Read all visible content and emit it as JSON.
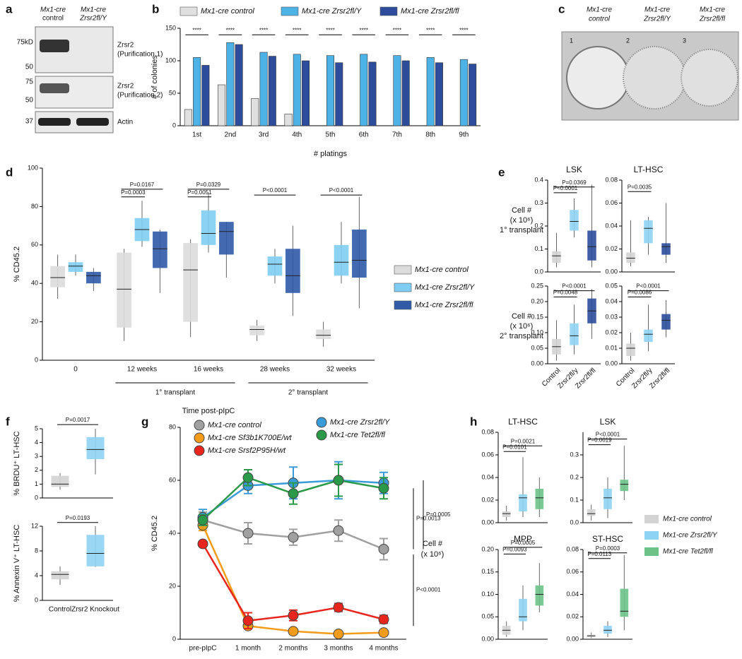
{
  "blot": {
    "letter": "a",
    "lanes": [
      [
        "Mx1-cre",
        "control"
      ],
      [
        "Mx1-cre",
        "Zrsr2fl/Y"
      ]
    ],
    "markers": [
      "75kD",
      "50",
      "75",
      "50",
      "37"
    ],
    "bands": [
      [
        "Zrsr2",
        "(Purification 1)"
      ],
      [
        "Zrsr2",
        "(Purification 2)"
      ],
      [
        "Actin"
      ]
    ]
  },
  "plate": {
    "letter": "c",
    "labels": [
      [
        "Mx1-cre",
        "control"
      ],
      [
        "Mx1-cre",
        "Zrsr2fl/Y"
      ],
      [
        "Mx1-cre",
        "Zrsr2fl/fl"
      ]
    ],
    "wells": [
      "1",
      "2",
      "3"
    ]
  },
  "e_row_labels": [
    [
      "Cell #",
      "(x 10⁶)",
      "1° transplant"
    ],
    [
      "Cell #",
      "(x 10⁶)",
      "2° transplant"
    ]
  ],
  "h_side_label": [
    "Cell #",
    "(x 10⁶)"
  ],
  "h_legend": [
    {
      "name": "Mx1-cre control",
      "color": "#d3d3d3"
    },
    {
      "name": "Mx1-cre Zrsr2fl/Y",
      "color": "#8fd3f4"
    },
    {
      "name": "Mx1-cre Tet2fl/fl",
      "color": "#6cc287"
    }
  ],
  "chart_data": [
    {
      "type": "bar",
      "panel": "b",
      "ylabel": "# of colonies",
      "xlabel": "# platings",
      "legend": "top",
      "categories": [
        "1st",
        "2nd",
        "3rd",
        "4th",
        "5th",
        "6th",
        "7th",
        "8th",
        "9th"
      ],
      "series": [
        {
          "name": "Mx1-cre control",
          "color": "#e0e0e0",
          "values": [
            25,
            63,
            42,
            18,
            0,
            0,
            0,
            0,
            0
          ]
        },
        {
          "name": "Mx1-cre Zrsr2fl/Y",
          "color": "#4db3e6",
          "values": [
            105,
            128,
            113,
            110,
            108,
            110,
            108,
            105,
            102
          ]
        },
        {
          "name": "Mx1-cre Zrsr2fl/fl",
          "color": "#2e4c9c",
          "values": [
            93,
            125,
            107,
            100,
            97,
            98,
            100,
            97,
            95
          ]
        }
      ],
      "ylim": [
        0,
        150
      ],
      "yticks": [
        0,
        50,
        100,
        150
      ],
      "annotations": [
        "****",
        "****",
        "****",
        "****",
        "****",
        "****",
        "****",
        "****",
        "****"
      ]
    },
    {
      "type": "box",
      "panel": "d",
      "ylabel": "% CD45.2",
      "xlabel": "Time post-pIpC",
      "legend": "right",
      "categories": [
        "0",
        "12 weeks",
        "16 weeks",
        "28 weeks",
        "32  weeks"
      ],
      "group_labels": [
        "1° transplant",
        "2° transplant"
      ],
      "series": [
        {
          "name": "Mx1-cre control",
          "color": "#dcdcdc",
          "values": [
            [
              32,
              38,
              43,
              49,
              55
            ],
            [
              10,
              17,
              37,
              56,
              58
            ],
            [
              12,
              20,
              47,
              61,
              63
            ],
            [
              10,
              13,
              16,
              18,
              21
            ],
            [
              7,
              11,
              13,
              16,
              20
            ]
          ]
        },
        {
          "name": "Mx1-cre Zrsr2fl/Y",
          "color": "#7fcdf2",
          "values": [
            [
              44,
              46,
              49,
              51,
              55
            ],
            [
              59,
              62,
              68,
              74,
              83
            ],
            [
              56,
              60,
              66,
              78,
              87
            ],
            [
              40,
              44,
              50,
              54,
              58
            ],
            [
              40,
              44,
              51,
              60,
              72
            ]
          ]
        },
        {
          "name": "Mx1-cre Zrsr2fl/fl",
          "color": "#2f5aa8",
          "values": [
            [
              36,
              40,
              44,
              46,
              48
            ],
            [
              35,
              48,
              58,
              67,
              68
            ],
            [
              43,
              55,
              67,
              72,
              72
            ],
            [
              23,
              35,
              44,
              58,
              70
            ],
            [
              27,
              43,
              52,
              68,
              85
            ]
          ]
        }
      ],
      "ylim": [
        0,
        100
      ],
      "yticks": [
        0,
        20,
        40,
        60,
        80,
        100
      ],
      "annotations": [
        "P=0.0167",
        "P=0.0003",
        "P=0.0329",
        "P=0.0051",
        "P<0.0001",
        "P<0.0001"
      ]
    },
    {
      "type": "box",
      "panel": "e",
      "title": "LSK",
      "categories": [
        null,
        null,
        null
      ],
      "values": [
        [
          0.02,
          0.04,
          0.07,
          0.09,
          0.17
        ],
        [
          0.15,
          0.18,
          0.22,
          0.27,
          0.32
        ],
        [
          0.02,
          0.05,
          0.11,
          0.18,
          0.38
        ]
      ],
      "colors": [
        "#d3d3d3",
        "#8fd3f4",
        "#2b4c9a"
      ],
      "ylim": [
        0,
        0.4
      ],
      "yticks": [
        {
          "value": 0,
          "label": "0.0"
        },
        0.1,
        0.2,
        0.3,
        0.4
      ],
      "annotations": [
        "P=0.0369",
        "P<0.0001"
      ]
    },
    {
      "type": "box",
      "title": "LT-HSC",
      "categories": [
        null,
        null,
        null
      ],
      "values": [
        [
          0.005,
          0.008,
          0.012,
          0.017,
          0.045
        ],
        [
          0.015,
          0.025,
          0.038,
          0.045,
          0.048
        ],
        [
          0.008,
          0.015,
          0.022,
          0.025,
          0.06
        ]
      ],
      "colors": [
        "#d3d3d3",
        "#8fd3f4",
        "#2b4c9a"
      ],
      "ylim": [
        0,
        0.08
      ],
      "yticks": [
        {
          "value": 0,
          "label": "0.00"
        },
        0.02,
        0.04,
        0.06,
        0.08
      ],
      "annotations": [
        "P=0.0035"
      ]
    },
    {
      "type": "box",
      "categories": [
        "Control",
        "Zrsr2fl/y",
        "Zrsr2fl/fl"
      ],
      "values": [
        [
          0.01,
          0.03,
          0.055,
          0.08,
          0.14
        ],
        [
          0.03,
          0.06,
          0.09,
          0.13,
          0.19
        ],
        [
          0.08,
          0.13,
          0.17,
          0.21,
          0.24
        ]
      ],
      "colors": [
        "#d3d3d3",
        "#8fd3f4",
        "#2b4c9a"
      ],
      "ylim": [
        0,
        0.25
      ],
      "yticks": [
        {
          "value": 0,
          "label": "0.00"
        },
        0.05,
        {
          "value": 0.1,
          "label": "0.10"
        },
        0.15,
        {
          "value": 0.2,
          "label": "0.20"
        },
        0.25
      ],
      "annotations": [
        "P<0.0001",
        "P=0.0048"
      ]
    },
    {
      "type": "box",
      "categories": [
        "Control",
        "Zrsr2fl/y",
        "Zrsr2fl/fl"
      ],
      "values": [
        [
          0.002,
          0.005,
          0.01,
          0.013,
          0.02
        ],
        [
          0.008,
          0.014,
          0.019,
          0.022,
          0.038
        ],
        [
          0.017,
          0.022,
          0.028,
          0.032,
          0.041
        ]
      ],
      "colors": [
        "#d3d3d3",
        "#8fd3f4",
        "#2b4c9a"
      ],
      "ylim": [
        0,
        0.05
      ],
      "yticks": [
        {
          "value": 0,
          "label": "0.00"
        },
        0.01,
        0.02,
        0.03,
        0.04,
        0.05
      ],
      "annotations": [
        "P<0.0001",
        "P=0.0086"
      ]
    },
    {
      "type": "box",
      "panel": "f",
      "ylabel": "% BRDU⁺ LT-HSC",
      "categories": [
        null,
        null
      ],
      "values": [
        [
          0.6,
          0.8,
          1.0,
          1.6,
          1.8
        ],
        [
          1.7,
          2.8,
          3.5,
          4.4,
          5.0
        ]
      ],
      "colors": [
        "#d3d3d3",
        "#8fd3f4"
      ],
      "ylim": [
        0,
        5
      ],
      "yticks": [
        0,
        1,
        2,
        3,
        4,
        5
      ],
      "annotations": [
        "P=0.0017"
      ]
    },
    {
      "type": "box",
      "ylabel": "% Annexin V⁺ LT-HSC",
      "categories": [
        "Control",
        "Zrsr2 Knockout"
      ],
      "values": [
        [
          2.5,
          3.4,
          4.2,
          4.7,
          5.5
        ],
        [
          5.4,
          5.5,
          7.6,
          10.6,
          12.0
        ]
      ],
      "colors": [
        "#d3d3d3",
        "#8fd3f4"
      ],
      "ylim": [
        0,
        12
      ],
      "yticks": [
        0,
        4,
        8,
        12
      ],
      "annotations": [
        "P=0.0193"
      ]
    },
    {
      "type": "line",
      "panel": "g",
      "ylabel": "% CD45.2",
      "legend": "top",
      "categories": [
        "pre-pIpC",
        "1 month",
        "2 months",
        "3 months",
        "4 months"
      ],
      "series": [
        {
          "name": "Mx1-cre control",
          "color": "#a0a0a0",
          "values": [
            45,
            40,
            38.5,
            41,
            34
          ],
          "errors": [
            3,
            4,
            3,
            4,
            4
          ]
        },
        {
          "name": "Mx1-cre Sf3b1K700E/wt",
          "color": "#f39c1a",
          "values": [
            43,
            5,
            3,
            2,
            2.5
          ],
          "errors": [
            2,
            1,
            1,
            0.5,
            0.5
          ]
        },
        {
          "name": "Mx1-cre Srsf2P95H/wt",
          "color": "#e8261e",
          "values": [
            36,
            7,
            9,
            12,
            7.5
          ],
          "errors": [
            1,
            3,
            2,
            1.5,
            1.5
          ]
        },
        {
          "name": "Mx1-cre Zrsr2fl/Y",
          "color": "#3a9bd9",
          "values": [
            46,
            58,
            59,
            60,
            59
          ],
          "errors": [
            3,
            3,
            6,
            7,
            4
          ]
        },
        {
          "name": "Mx1-cre Tet2fl/fl",
          "color": "#2a9a48",
          "values": [
            45,
            61,
            55,
            60,
            57
          ],
          "errors": [
            2,
            3,
            4,
            6,
            4
          ]
        }
      ],
      "ylim": [
        0,
        80
      ],
      "yticks": [
        0,
        20,
        40,
        60,
        80
      ],
      "annotations": [
        "P=0.0005",
        "P=0.0013",
        "P<0.0001"
      ]
    },
    {
      "type": "box",
      "panel": "h",
      "title": "LT-HSC",
      "categories": [
        null,
        null,
        null
      ],
      "values": [
        [
          0.002,
          0.005,
          0.008,
          0.01,
          0.015
        ],
        [
          0.005,
          0.01,
          0.022,
          0.025,
          0.058
        ],
        [
          0.005,
          0.012,
          0.022,
          0.03,
          0.04
        ]
      ],
      "colors": [
        "#d3d3d3",
        "#8fd3f4",
        "#6cc287"
      ],
      "ylim": [
        0,
        0.08
      ],
      "yticks": [
        {
          "value": 0,
          "label": "0.00"
        },
        0.02,
        0.04,
        0.06,
        0.08
      ],
      "annotations": [
        "P=0.0021",
        "P=0.0101"
      ]
    },
    {
      "type": "box",
      "title": "LSK",
      "categories": [
        null,
        null,
        null
      ],
      "values": [
        [
          0.01,
          0.03,
          0.04,
          0.06,
          0.08
        ],
        [
          0.02,
          0.06,
          0.11,
          0.15,
          0.2
        ],
        [
          0.1,
          0.14,
          0.17,
          0.19,
          0.34
        ]
      ],
      "colors": [
        "#d3d3d3",
        "#8fd3f4",
        "#6cc287"
      ],
      "ylim": [
        0,
        0.4
      ],
      "yticks": [
        {
          "value": 0,
          "label": "0.0"
        },
        0.1,
        0.2,
        0.3
      ],
      "annotations": [
        "P<0.0001",
        "P=0.0019"
      ]
    },
    {
      "type": "box",
      "title": "MPP",
      "categories": [
        null,
        null,
        null
      ],
      "values": [
        [
          0.005,
          0.01,
          0.02,
          0.03,
          0.04
        ],
        [
          0.02,
          0.04,
          0.05,
          0.09,
          0.12
        ],
        [
          0.06,
          0.075,
          0.1,
          0.12,
          0.17
        ]
      ],
      "colors": [
        "#d3d3d3",
        "#8fd3f4",
        "#6cc287"
      ],
      "ylim": [
        0,
        0.2
      ],
      "yticks": [
        {
          "value": 0,
          "label": "0.00"
        },
        0.05,
        {
          "value": 0.1,
          "label": "0.10"
        },
        0.15,
        {
          "value": 0.2,
          "label": "0.20"
        }
      ],
      "annotations": [
        "P=0.0005",
        "P=0.0093"
      ]
    },
    {
      "type": "box",
      "title": "ST-HSC",
      "categories": [
        null,
        null,
        null
      ],
      "values": [
        [
          0.001,
          0.002,
          0.003,
          0.004,
          0.006
        ],
        [
          0.002,
          0.005,
          0.008,
          0.012,
          0.016
        ],
        [
          0.008,
          0.02,
          0.025,
          0.045,
          0.075
        ]
      ],
      "colors": [
        "#d3d3d3",
        "#8fd3f4",
        "#6cc287"
      ],
      "ylim": [
        0,
        0.08
      ],
      "yticks": [
        {
          "value": 0,
          "label": "0.00"
        },
        0.02,
        0.04,
        0.06,
        0.08
      ],
      "annotations": [
        "P=0.0003",
        "P=0.0113"
      ]
    }
  ]
}
